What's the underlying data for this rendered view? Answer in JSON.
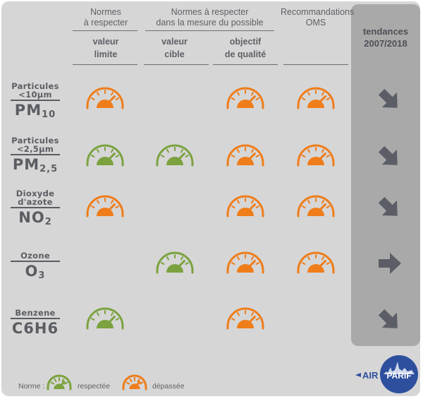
{
  "headers": {
    "norms_required": [
      "Normes",
      "à respecter"
    ],
    "norms_possible": [
      "Normes à respecter",
      "dans la mesure du possible"
    ],
    "who": [
      "Recommandations",
      "OMS"
    ],
    "trend": [
      "tendances",
      "2007/2018"
    ]
  },
  "subheaders": {
    "valeur_limite": [
      "valeur",
      "limite"
    ],
    "valeur_cible": [
      "valeur",
      "cible"
    ],
    "objectif": [
      "objectif",
      "de qualité"
    ]
  },
  "pollutants": [
    {
      "name_lines": [
        "Particules",
        "<10µm"
      ],
      "symbol": "PM",
      "symbol_sub": "10"
    },
    {
      "name_lines": [
        "Particules",
        "<2,5µm"
      ],
      "symbol": "PM",
      "symbol_sub": "2,5"
    },
    {
      "name_lines": [
        "Dioxyde",
        "d'azote"
      ],
      "symbol": "NO",
      "symbol_sub": "2"
    },
    {
      "name_lines": [
        "Ozone"
      ],
      "symbol": "O",
      "symbol_sub": "3"
    },
    {
      "name_lines": [
        "Benzene"
      ],
      "symbol": "C6H6",
      "symbol_sub": ""
    }
  ],
  "legend": {
    "label": "Norme :",
    "respected": "respectée",
    "exceeded": "dépassée"
  },
  "colors": {
    "respected": "#7ba23f",
    "exceeded": "#ef7d1a",
    "trend_arrow": "#5b5e66"
  },
  "logo": {
    "left": "AIR",
    "right": "PARIF",
    "arrow_icon": "arrow-right-icon"
  },
  "chart_data": {
    "type": "table",
    "columns": [
      "valeur limite",
      "valeur cible",
      "objectif de qualité",
      "Recommandations OMS",
      "tendances 2007/2018"
    ],
    "rows": [
      {
        "pollutant": "PM10",
        "cells": [
          "exceeded",
          "",
          "exceeded",
          "exceeded"
        ],
        "trend": "down"
      },
      {
        "pollutant": "PM2,5",
        "cells": [
          "respected",
          "respected",
          "exceeded",
          "exceeded"
        ],
        "trend": "down"
      },
      {
        "pollutant": "NO2",
        "cells": [
          "exceeded",
          "",
          "exceeded",
          "exceeded"
        ],
        "trend": "down"
      },
      {
        "pollutant": "O3",
        "cells": [
          "",
          "respected",
          "exceeded",
          "exceeded"
        ],
        "trend": "flat"
      },
      {
        "pollutant": "C6H6",
        "cells": [
          "respected",
          "",
          "exceeded",
          ""
        ],
        "trend": "down"
      }
    ]
  }
}
